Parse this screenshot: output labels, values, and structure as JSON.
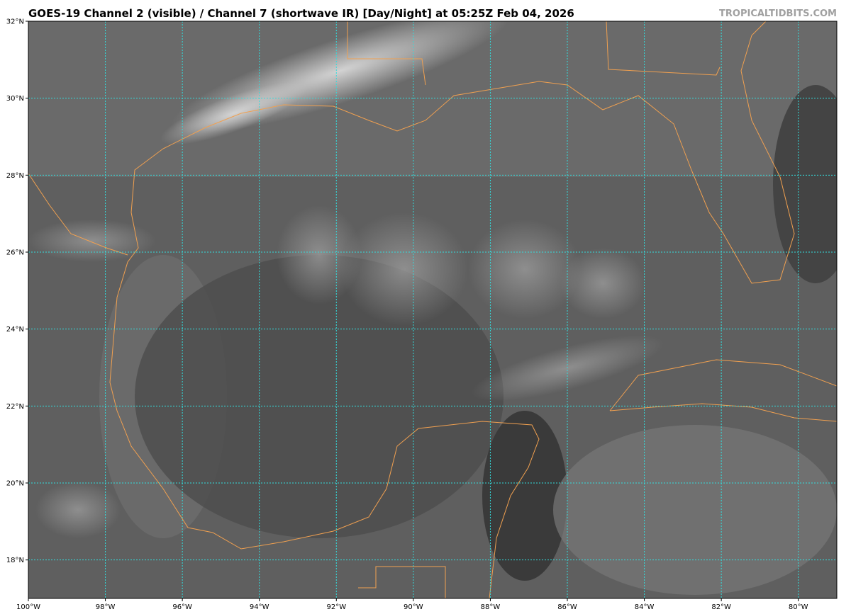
{
  "header": {
    "title": "GOES-19 Channel 2 (visible) / Channel 7 (shortwave IR) [Day/Night] at 05:25Z Feb 04, 2026",
    "brand": "TROPICALTIDBITS.COM"
  },
  "map": {
    "type": "satellite imagery",
    "extent": {
      "lon_west": -100,
      "lon_east": -79,
      "lat_south": 17,
      "lat_north": 32
    },
    "lon_ticks": [
      "100°W",
      "98°W",
      "96°W",
      "94°W",
      "92°W",
      "90°W",
      "88°W",
      "86°W",
      "84°W",
      "82°W",
      "80°W"
    ],
    "lat_ticks": [
      "32°N",
      "30°N",
      "28°N",
      "26°N",
      "24°N",
      "22°N",
      "20°N",
      "18°N"
    ],
    "colors": {
      "gridline": "#33dddd",
      "coastline": "#f0a050",
      "background_gray": "#5a5a5a"
    }
  }
}
